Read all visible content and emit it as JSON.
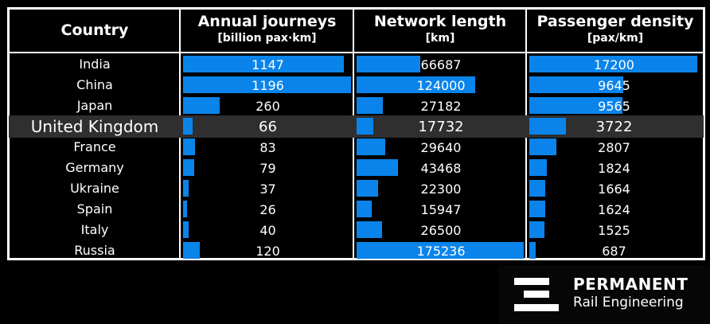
{
  "colors": {
    "bar": "#0a84ea",
    "background": "#000000",
    "highlight_row": "#2f2f2f",
    "text": "#ffffff"
  },
  "header": {
    "country": "Country",
    "journeys_title": "Annual journeys",
    "journeys_unit": "[billion pax·km]",
    "length_title": "Network length",
    "length_unit": "[km]",
    "density_title": "Passenger density",
    "density_unit": "[pax/km]"
  },
  "chart_data": {
    "type": "table",
    "highlight_country": "United Kingdom",
    "columns": [
      "Country",
      "Annual journeys [billion pax·km]",
      "Network length [km]",
      "Passenger density [pax/km]"
    ],
    "rows": [
      {
        "country": "India",
        "journeys": 1147,
        "length": 66687,
        "density": 17200
      },
      {
        "country": "China",
        "journeys": 1196,
        "length": 124000,
        "density": 9645
      },
      {
        "country": "Japan",
        "journeys": 260,
        "length": 27182,
        "density": 9565
      },
      {
        "country": "United Kingdom",
        "journeys": 66,
        "length": 17732,
        "density": 3722
      },
      {
        "country": "France",
        "journeys": 83,
        "length": 29640,
        "density": 2807
      },
      {
        "country": "Germany",
        "journeys": 79,
        "length": 43468,
        "density": 1824
      },
      {
        "country": "Ukraine",
        "journeys": 37,
        "length": 22300,
        "density": 1664
      },
      {
        "country": "Spain",
        "journeys": 26,
        "length": 15947,
        "density": 1624
      },
      {
        "country": "Italy",
        "journeys": 40,
        "length": 26500,
        "density": 1525
      },
      {
        "country": "Russia",
        "journeys": 120,
        "length": 175236,
        "density": 687
      }
    ]
  },
  "logo": {
    "line1": "PERMANENT",
    "line2": "Rail Engineering"
  }
}
